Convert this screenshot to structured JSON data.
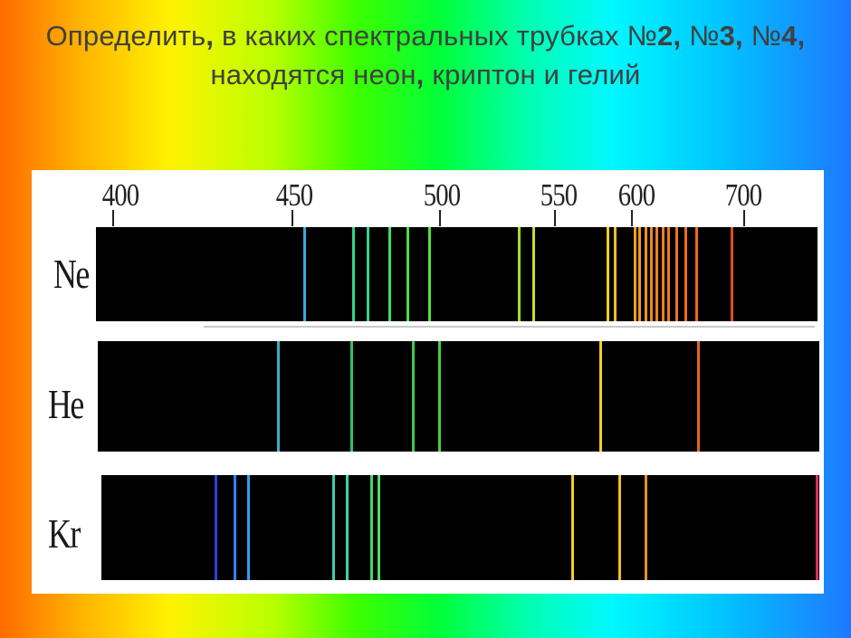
{
  "title": {
    "segments": [
      {
        "text": "Определить",
        "bold": false
      },
      {
        "text": ", ",
        "bold": true
      },
      {
        "text": "в каких спектральных трубках ",
        "bold": false
      },
      {
        "text": "№",
        "bold": false
      },
      {
        "text": "2, ",
        "bold": true
      },
      {
        "text": "№",
        "bold": false
      },
      {
        "text": "3, ",
        "bold": true
      },
      {
        "text": "№",
        "bold": false
      },
      {
        "text": "4, ",
        "bold": true
      },
      {
        "text": "находятся неон",
        "bold": false
      },
      {
        "text": ", ",
        "bold": true
      },
      {
        "text": "криптон и гелий",
        "bold": false
      }
    ]
  },
  "scale": {
    "ticks": [
      "400",
      "450",
      "500",
      "550",
      "600",
      "700"
    ]
  },
  "spectra": [
    {
      "name": "Ne",
      "lines": [
        {
          "color": "#3aa8d8",
          "pos": 0.287
        },
        {
          "color": "#2fd68a",
          "pos": 0.355
        },
        {
          "color": "#2fd68a",
          "pos": 0.375
        },
        {
          "color": "#3adf6a",
          "pos": 0.405
        },
        {
          "color": "#44e04a",
          "pos": 0.43
        },
        {
          "color": "#50e040",
          "pos": 0.46
        },
        {
          "color": "#a0e030",
          "pos": 0.585
        },
        {
          "color": "#c0e030",
          "pos": 0.605
        },
        {
          "color": "#f0d020",
          "pos": 0.708
        },
        {
          "color": "#f0c020",
          "pos": 0.718
        },
        {
          "color": "#f0a020",
          "pos": 0.745
        },
        {
          "color": "#f09820",
          "pos": 0.752
        },
        {
          "color": "#f09020",
          "pos": 0.76
        },
        {
          "color": "#f08a20",
          "pos": 0.768
        },
        {
          "color": "#f08420",
          "pos": 0.776
        },
        {
          "color": "#f07e20",
          "pos": 0.784
        },
        {
          "color": "#f07820",
          "pos": 0.792
        },
        {
          "color": "#f07220",
          "pos": 0.803
        },
        {
          "color": "#f06c20",
          "pos": 0.815
        },
        {
          "color": "#f06620",
          "pos": 0.83
        },
        {
          "color": "#e05020",
          "pos": 0.88
        }
      ]
    },
    {
      "name": "He",
      "lines": [
        {
          "color": "#3ab0c8",
          "pos": 0.248
        },
        {
          "color": "#38c060",
          "pos": 0.35
        },
        {
          "color": "#40c850",
          "pos": 0.435
        },
        {
          "color": "#48d040",
          "pos": 0.472
        },
        {
          "color": "#f0d020",
          "pos": 0.695
        },
        {
          "color": "#e06820",
          "pos": 0.83
        }
      ]
    },
    {
      "name": "Kr",
      "lines": [
        {
          "color": "#3040e0",
          "pos": 0.158
        },
        {
          "color": "#3080f0",
          "pos": 0.184
        },
        {
          "color": "#30a0f0",
          "pos": 0.203
        },
        {
          "color": "#38d0b0",
          "pos": 0.322
        },
        {
          "color": "#38d8a0",
          "pos": 0.34
        },
        {
          "color": "#40d870",
          "pos": 0.375
        },
        {
          "color": "#48e060",
          "pos": 0.385
        },
        {
          "color": "#f0d020",
          "pos": 0.655
        },
        {
          "color": "#f0c020",
          "pos": 0.72
        },
        {
          "color": "#e09030",
          "pos": 0.757
        },
        {
          "color": "#e03050",
          "pos": 0.995
        }
      ]
    }
  ]
}
